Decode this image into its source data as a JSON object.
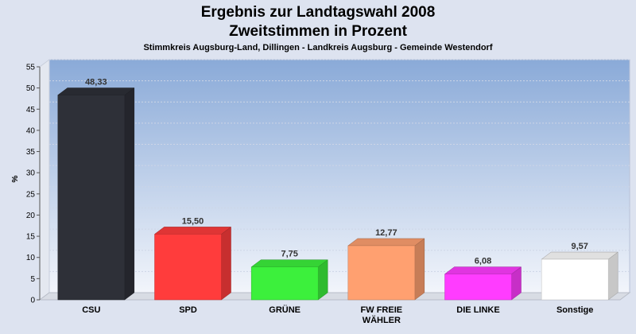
{
  "chart_data": {
    "type": "bar",
    "title": "Ergebnis zur Landtagswahl 2008",
    "subtitle1": "Zweitstimmen in Prozent",
    "subtitle2": "Stimmkreis Augsburg-Land, Dillingen - Landkreis Augsburg - Gemeinde Westendorf",
    "ylabel": "%",
    "ylim": [
      0,
      55
    ],
    "yticks": [
      0,
      5,
      10,
      15,
      20,
      25,
      30,
      35,
      40,
      45,
      50,
      55
    ],
    "grid": true,
    "categories": [
      [
        "CSU"
      ],
      [
        "SPD"
      ],
      [
        "GRÜNE"
      ],
      [
        "FW FREIE",
        "WÄHLER"
      ],
      [
        "DIE LINKE"
      ],
      [
        "Sonstige"
      ]
    ],
    "values": [
      48.33,
      15.5,
      7.75,
      12.77,
      6.08,
      9.57
    ],
    "value_labels": [
      "48,33",
      "15,50",
      "7,75",
      "12,77",
      "6,08",
      "9,57"
    ],
    "colors": [
      "#2e3038",
      "#ff3c3c",
      "#3cf03c",
      "#ffa070",
      "#ff3cff",
      "#ffffff"
    ]
  }
}
